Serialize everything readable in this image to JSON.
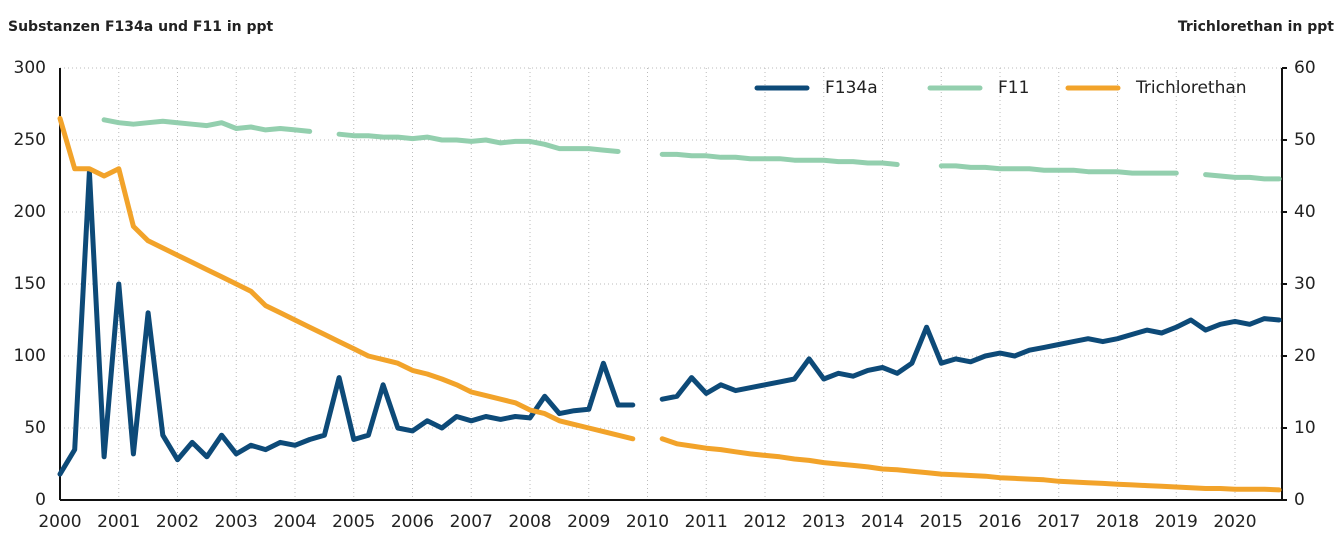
{
  "chart_data": {
    "type": "line",
    "y_label": "Substanzen F134a und F11 in ppt",
    "y2_label": "Trichlorethan in ppt",
    "x": [
      2000,
      2000.25,
      2000.5,
      2000.75,
      2001,
      2001.25,
      2001.5,
      2001.75,
      2002,
      2002.25,
      2002.5,
      2002.75,
      2003,
      2003.25,
      2003.5,
      2003.75,
      2004,
      2004.25,
      2004.5,
      2004.75,
      2005,
      2005.25,
      2005.5,
      2005.75,
      2006,
      2006.25,
      2006.5,
      2006.75,
      2007,
      2007.25,
      2007.5,
      2007.75,
      2008,
      2008.25,
      2008.5,
      2008.75,
      2009,
      2009.25,
      2009.5,
      2009.75,
      2010,
      2010.25,
      2010.5,
      2010.75,
      2011,
      2011.25,
      2011.5,
      2011.75,
      2012,
      2012.25,
      2012.5,
      2012.75,
      2013,
      2013.25,
      2013.5,
      2013.75,
      2014,
      2014.25,
      2014.5,
      2014.75,
      2015,
      2015.25,
      2015.5,
      2015.75,
      2016,
      2016.25,
      2016.5,
      2016.75,
      2017,
      2017.25,
      2017.5,
      2017.75,
      2018,
      2018.25,
      2018.5,
      2018.75,
      2019,
      2019.25,
      2019.5,
      2019.75,
      2020,
      2020.25,
      2020.5,
      2020.75
    ],
    "series": [
      {
        "name": "F134a",
        "color": "#0d4a78",
        "values": [
          18,
          35,
          228,
          30,
          150,
          32,
          130,
          45,
          28,
          40,
          30,
          45,
          32,
          38,
          35,
          40,
          38,
          42,
          45,
          85,
          42,
          45,
          80,
          50,
          48,
          55,
          50,
          58,
          55,
          58,
          56,
          58,
          57,
          72,
          60,
          62,
          63,
          95,
          66,
          66,
          null,
          70,
          72,
          85,
          74,
          80,
          76,
          78,
          80,
          82,
          84,
          98,
          84,
          88,
          86,
          90,
          92,
          88,
          95,
          120,
          95,
          98,
          96,
          100,
          102,
          100,
          104,
          106,
          108,
          110,
          112,
          110,
          112,
          115,
          118,
          116,
          120,
          125,
          118,
          122,
          124,
          122,
          126,
          125
        ]
      },
      {
        "name": "F11",
        "color": "#93cfae",
        "values": [
          null,
          null,
          null,
          264,
          262,
          261,
          262,
          263,
          262,
          261,
          260,
          262,
          258,
          259,
          257,
          258,
          257,
          256,
          null,
          254,
          253,
          253,
          252,
          252,
          251,
          252,
          250,
          250,
          249,
          250,
          248,
          249,
          249,
          247,
          244,
          244,
          244,
          243,
          242,
          null,
          null,
          240,
          240,
          239,
          239,
          238,
          238,
          237,
          237,
          237,
          236,
          236,
          236,
          235,
          235,
          234,
          234,
          233,
          null,
          null,
          232,
          232,
          231,
          231,
          230,
          230,
          230,
          229,
          229,
          229,
          228,
          228,
          228,
          227,
          227,
          227,
          227,
          null,
          226,
          225,
          224,
          224,
          223,
          223
        ]
      },
      {
        "name": "Trichlorethan",
        "color": "#f2a32a",
        "axis": "y2",
        "values": [
          53,
          46,
          46,
          45,
          46,
          38,
          36,
          35,
          34,
          33,
          32,
          31,
          30,
          29,
          27,
          26,
          25,
          24,
          23,
          22,
          21,
          20,
          19.5,
          19,
          18,
          17.5,
          16.8,
          16,
          15,
          14.5,
          14,
          13.5,
          12.5,
          12,
          11,
          10.5,
          10,
          9.5,
          9,
          8.5,
          null,
          8.5,
          7.8,
          7.5,
          7.2,
          7,
          6.7,
          6.4,
          6.2,
          6,
          5.7,
          5.5,
          5.2,
          5,
          4.8,
          4.6,
          4.3,
          4.2,
          4,
          3.8,
          3.6,
          3.5,
          3.4,
          3.3,
          3.1,
          3,
          2.9,
          2.8,
          2.6,
          2.5,
          2.4,
          2.3,
          2.2,
          2.1,
          2,
          1.9,
          1.8,
          1.7,
          1.6,
          1.6,
          1.5,
          1.5,
          1.5,
          1.4
        ]
      }
    ],
    "xlim": [
      2000,
      2020.8
    ],
    "xticks": [
      2000,
      2001,
      2002,
      2003,
      2004,
      2005,
      2006,
      2007,
      2008,
      2009,
      2010,
      2011,
      2012,
      2013,
      2014,
      2015,
      2016,
      2017,
      2018,
      2019,
      2020
    ],
    "ylim": [
      0,
      300
    ],
    "yticks": [
      0,
      50,
      100,
      150,
      200,
      250,
      300
    ],
    "y2lim": [
      0,
      60
    ],
    "y2ticks": [
      0,
      10,
      20,
      30,
      40,
      50,
      60
    ],
    "grid": true,
    "legend": "upper right"
  }
}
